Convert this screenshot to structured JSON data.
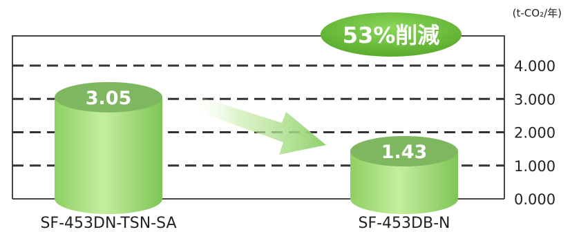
{
  "chart_data": {
    "type": "bar",
    "unit": "(t-CO₂/年)",
    "categories": [
      "SF-453DN-TSN-SA",
      "SF-453DB-N"
    ],
    "values": [
      3.05,
      1.43
    ],
    "value_labels": [
      "3.05",
      "1.43"
    ],
    "ylim": [
      0,
      4
    ],
    "yticks": [
      "0.000",
      "1.000",
      "2.000",
      "3.000",
      "4.000"
    ],
    "grid": true,
    "annotation": "53%削減",
    "colors": {
      "bar_body": "#9fdc73",
      "bar_top": "#7fb660",
      "badge": "#6cbf36",
      "arrow": "#8fd16a",
      "grid": "#333333"
    }
  }
}
